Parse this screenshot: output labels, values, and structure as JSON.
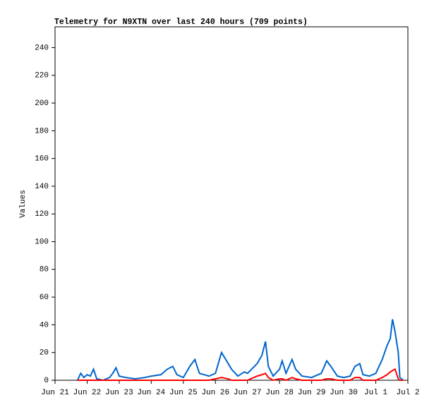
{
  "chart_data": {
    "type": "line",
    "title": "Telemetry for N9XTN over last 240 hours (709 points)",
    "y_label": "Values",
    "x": [
      0.7,
      0.8,
      0.9,
      1.0,
      1.1,
      1.2,
      1.3,
      1.5,
      1.7,
      1.8,
      1.9,
      2.0,
      2.2,
      2.5,
      2.8,
      3.0,
      3.3,
      3.5,
      3.67,
      3.8,
      4.0,
      4.2,
      4.36,
      4.5,
      4.8,
      5.0,
      5.19,
      5.4,
      5.5,
      5.7,
      5.9,
      6.0,
      6.3,
      6.45,
      6.56,
      6.65,
      6.8,
      7.0,
      7.08,
      7.2,
      7.39,
      7.5,
      7.7,
      8.0,
      8.3,
      8.47,
      8.6,
      8.8,
      9.0,
      9.2,
      9.35,
      9.5,
      9.6,
      9.8,
      10.0,
      10.2,
      10.35,
      10.45,
      10.52,
      10.6,
      10.7,
      10.75,
      10.85
    ],
    "series": [
      {
        "color": "#0066cc",
        "values": [
          0,
          5,
          2,
          4,
          3,
          8,
          1,
          0,
          2,
          5,
          9,
          3,
          2,
          1,
          2,
          3,
          4,
          8,
          10,
          4,
          2,
          10,
          15,
          5,
          3,
          5,
          20,
          12,
          8,
          3,
          6,
          5,
          12,
          18,
          28,
          10,
          3,
          8,
          14,
          5,
          15,
          8,
          3,
          2,
          5,
          14,
          10,
          3,
          2,
          3,
          10,
          12,
          4,
          3,
          5,
          15,
          25,
          30,
          44,
          35,
          20,
          2,
          0
        ]
      },
      {
        "color": "#ff0000",
        "values": [
          0,
          0,
          0,
          0,
          0,
          0,
          0,
          0,
          0,
          0,
          0,
          0,
          0,
          0,
          0,
          0,
          0,
          0,
          0,
          0,
          0,
          0,
          0,
          0,
          0,
          1,
          2,
          1,
          0,
          0,
          0,
          0,
          3,
          4,
          5,
          2,
          0,
          1,
          1,
          0,
          2,
          1,
          0,
          0,
          0,
          1,
          1,
          0,
          0,
          0,
          2,
          2,
          0,
          0,
          0,
          2,
          4,
          6,
          7,
          8,
          1,
          0,
          0
        ]
      }
    ],
    "xlim": [
      0,
      11
    ],
    "xticks": [
      {
        "value": 0,
        "label": "Jun 21"
      },
      {
        "value": 1,
        "label": "Jun 22"
      },
      {
        "value": 2,
        "label": "Jun 23"
      },
      {
        "value": 3,
        "label": "Jun 24"
      },
      {
        "value": 4,
        "label": "Jun 25"
      },
      {
        "value": 5,
        "label": "Jun 26"
      },
      {
        "value": 6,
        "label": "Jun 27"
      },
      {
        "value": 7,
        "label": "Jun 28"
      },
      {
        "value": 8,
        "label": "Jun 29"
      },
      {
        "value": 9,
        "label": "Jun 30"
      },
      {
        "value": 10,
        "label": "Jul 1"
      },
      {
        "value": 11,
        "label": "Jul 2"
      }
    ],
    "ylim": [
      0,
      255
    ],
    "yticks": [
      0,
      20,
      40,
      60,
      80,
      100,
      120,
      140,
      160,
      180,
      200,
      220,
      240
    ]
  }
}
